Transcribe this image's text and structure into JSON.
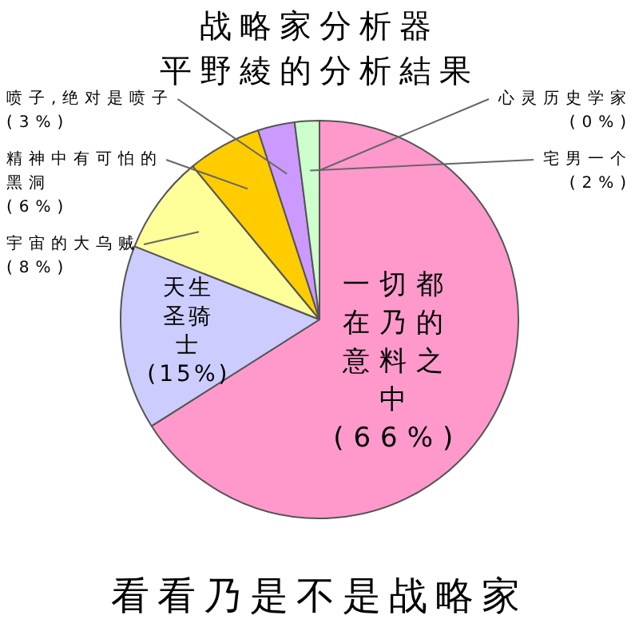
{
  "chart_data": {
    "type": "pie",
    "title": "战略家分析器",
    "subtitle": "平野綾的分析結果",
    "categories": [
      "一切都在乃的意料之中",
      "天生圣骑士",
      "宇宙的大乌贼",
      "精神中有可怕的黑洞",
      "喷子,绝对是喷子",
      "宅男一个",
      "心灵历史学家"
    ],
    "values": [
      66,
      15,
      8,
      6,
      3,
      2,
      0
    ],
    "value_labels": [
      "(66%)",
      "(15%)",
      "(8%)",
      "(6%)",
      "(3%)",
      "(2%)",
      "(0%)"
    ],
    "colors": [
      "#ff99cc",
      "#ccccff",
      "#ffff99",
      "#ffcc00",
      "#cc99ff",
      "#ccffcc",
      "#ffffff"
    ],
    "annotations": [
      "看看乃是不是战略家"
    ],
    "legend": false
  }
}
